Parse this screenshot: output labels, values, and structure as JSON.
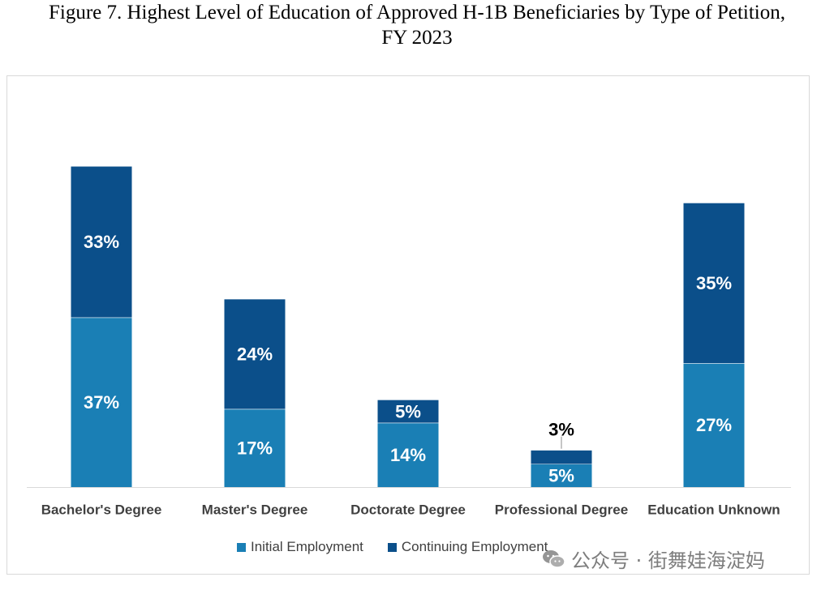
{
  "title_line1": "Figure 7. Highest Level of Education of Approved H-1B Beneficiaries by Type of Petition,",
  "title_line2": "FY 2023",
  "chart_data": {
    "type": "bar",
    "stacked": true,
    "categories": [
      "Bachelor's Degree",
      "Master's Degree",
      "Doctorate Degree",
      "Professional Degree",
      "Education Unknown"
    ],
    "series": [
      {
        "name": "Initial Employment",
        "values": [
          37,
          17,
          14,
          5,
          27
        ],
        "labels": [
          "37%",
          "17%",
          "14%",
          "5%",
          "27%"
        ],
        "color": "#1a7fb5"
      },
      {
        "name": "Continuing Employment",
        "values": [
          33,
          24,
          5,
          3,
          35
        ],
        "labels": [
          "33%",
          "24%",
          "5%",
          "3%",
          "35%"
        ],
        "color": "#0b4f8a"
      }
    ],
    "ylim": [
      0,
      74
    ],
    "grid": false,
    "legend_position": "bottom",
    "data_labels": true
  },
  "watermark": {
    "icon": "wechat-icon",
    "text": "公众号 · 街舞娃海淀妈"
  }
}
